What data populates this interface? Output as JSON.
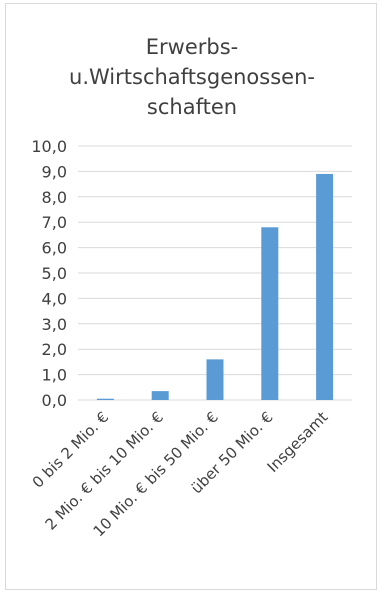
{
  "chart_data": {
    "type": "bar",
    "title_lines": [
      "Erwerbs-",
      "u.Wirtschaftsgenossen-",
      "schaften"
    ],
    "categories": [
      "0 bis 2 Mio. €",
      "2 Mio. € bis 10 Mio. €",
      "10 Mio. € bis 50 Mio. €",
      "über 50 Mio. €",
      "Insgesamt"
    ],
    "values": [
      0.05,
      0.35,
      1.6,
      6.8,
      8.9
    ],
    "ylim": [
      0,
      10
    ],
    "yticks": [
      "0,0",
      "1,0",
      "2,0",
      "3,0",
      "4,0",
      "5,0",
      "6,0",
      "7,0",
      "8,0",
      "9,0",
      "10,0"
    ],
    "grid": true,
    "bar_color": "#5b9bd5",
    "grid_color": "#d9d9d9"
  }
}
